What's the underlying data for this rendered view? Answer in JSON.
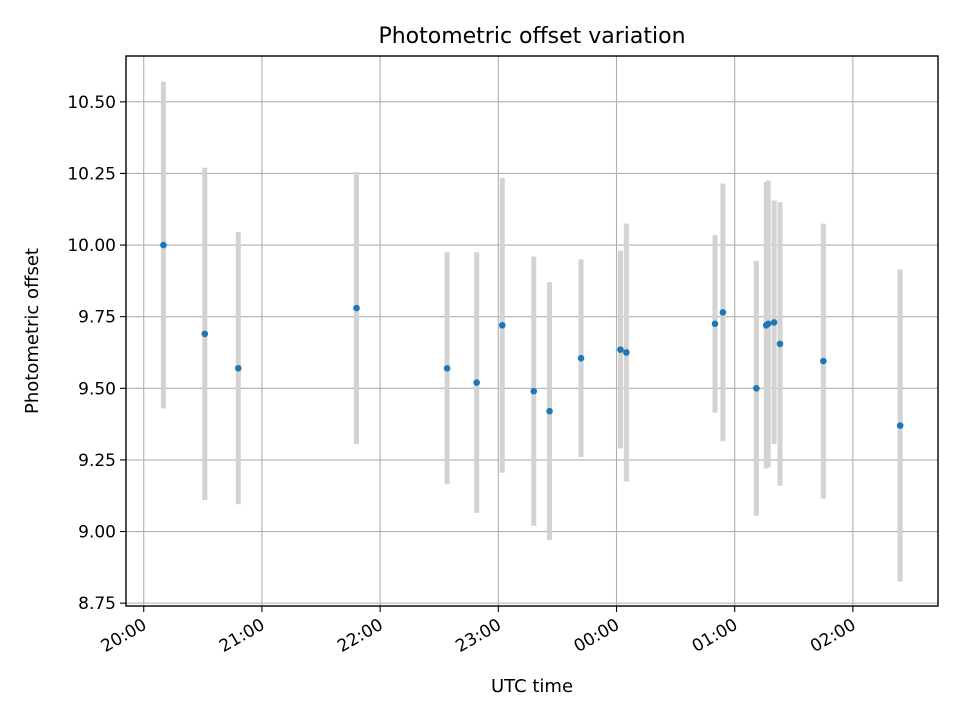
{
  "chart_data": {
    "type": "scatter",
    "title": "Photometric offset variation",
    "xlabel": "UTC time",
    "ylabel": "Photometric offset",
    "x_ticks": [
      "20:00",
      "21:00",
      "22:00",
      "23:00",
      "00:00",
      "01:00",
      "02:00"
    ],
    "y_ticks": [
      "8.75",
      "9.00",
      "9.25",
      "9.50",
      "9.75",
      "10.00",
      "10.25",
      "10.50"
    ],
    "ylim": [
      8.74,
      10.66
    ],
    "xlim_hours": [
      19.85,
      26.72
    ],
    "grid": true,
    "marker_color": "#1f77b4",
    "errorbar_color": "#d3d3d3",
    "points": [
      {
        "t": "20:10",
        "y": 10.0,
        "err": 0.57
      },
      {
        "t": "20:31",
        "y": 9.69,
        "err": 0.58
      },
      {
        "t": "20:48",
        "y": 9.57,
        "err": 0.475
      },
      {
        "t": "21:48",
        "y": 9.78,
        "err": 0.475
      },
      {
        "t": "22:34",
        "y": 9.57,
        "err": 0.405
      },
      {
        "t": "22:49",
        "y": 9.52,
        "err": 0.455
      },
      {
        "t": "23:02",
        "y": 9.72,
        "err": 0.515
      },
      {
        "t": "23:18",
        "y": 9.49,
        "err": 0.47
      },
      {
        "t": "23:26",
        "y": 9.42,
        "err": 0.45
      },
      {
        "t": "23:42",
        "y": 9.605,
        "err": 0.345
      },
      {
        "t": "00:02",
        "y": 9.635,
        "err": 0.345
      },
      {
        "t": "00:05",
        "y": 9.625,
        "err": 0.45
      },
      {
        "t": "00:50",
        "y": 9.725,
        "err": 0.31
      },
      {
        "t": "00:54",
        "y": 9.765,
        "err": 0.45
      },
      {
        "t": "01:11",
        "y": 9.5,
        "err": 0.445
      },
      {
        "t": "01:16",
        "y": 9.72,
        "err": 0.5
      },
      {
        "t": "01:17",
        "y": 9.725,
        "err": 0.5
      },
      {
        "t": "01:20",
        "y": 9.73,
        "err": 0.425
      },
      {
        "t": "01:23",
        "y": 9.655,
        "err": 0.495
      },
      {
        "t": "01:45",
        "y": 9.595,
        "err": 0.48
      },
      {
        "t": "02:24",
        "y": 9.37,
        "err": 0.545
      }
    ]
  }
}
